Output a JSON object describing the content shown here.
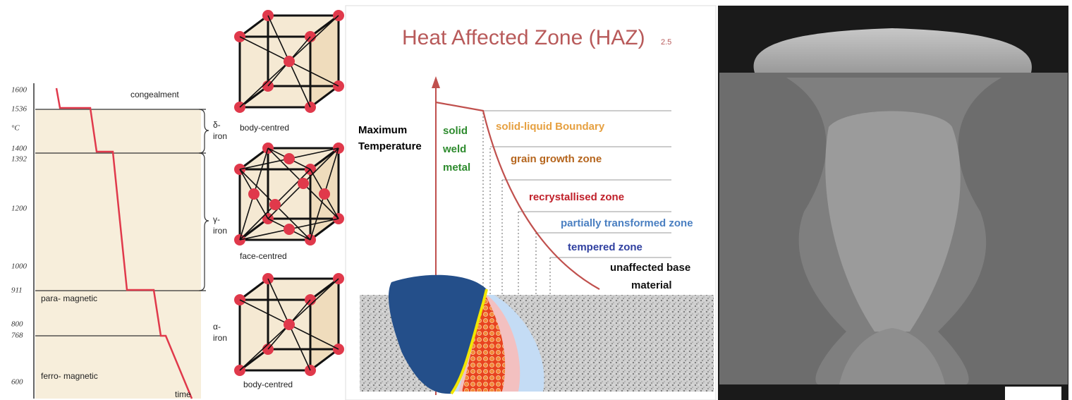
{
  "phase_diagram": {
    "temperature_labels": [
      "1600",
      "1536",
      "°C",
      "1400",
      "1392",
      "1200",
      "1000",
      "911",
      "800",
      "768",
      "600"
    ],
    "x_label": "time",
    "regions": [
      "congealment",
      "para- magnetic",
      "ferro- magnetic"
    ],
    "phases": [
      [
        "δ-",
        "iron"
      ],
      [
        "γ-",
        "iron"
      ],
      [
        "α-",
        "iron"
      ]
    ],
    "lattices": [
      "body-centred",
      "face-centred",
      "body-centred"
    ]
  },
  "haz": {
    "title": "Heat Affected Zone (HAZ)",
    "slide_number": "2.5",
    "y_label": [
      "Maximum",
      "Temperature"
    ],
    "weld_label": [
      "solid",
      "weld",
      "metal"
    ],
    "zones": [
      "solid-liquid Boundary",
      "grain growth zone",
      "recrystallised zone",
      "partially transformed zone",
      "tempered zone"
    ],
    "base_label": [
      "unaffected base",
      "material"
    ]
  }
}
